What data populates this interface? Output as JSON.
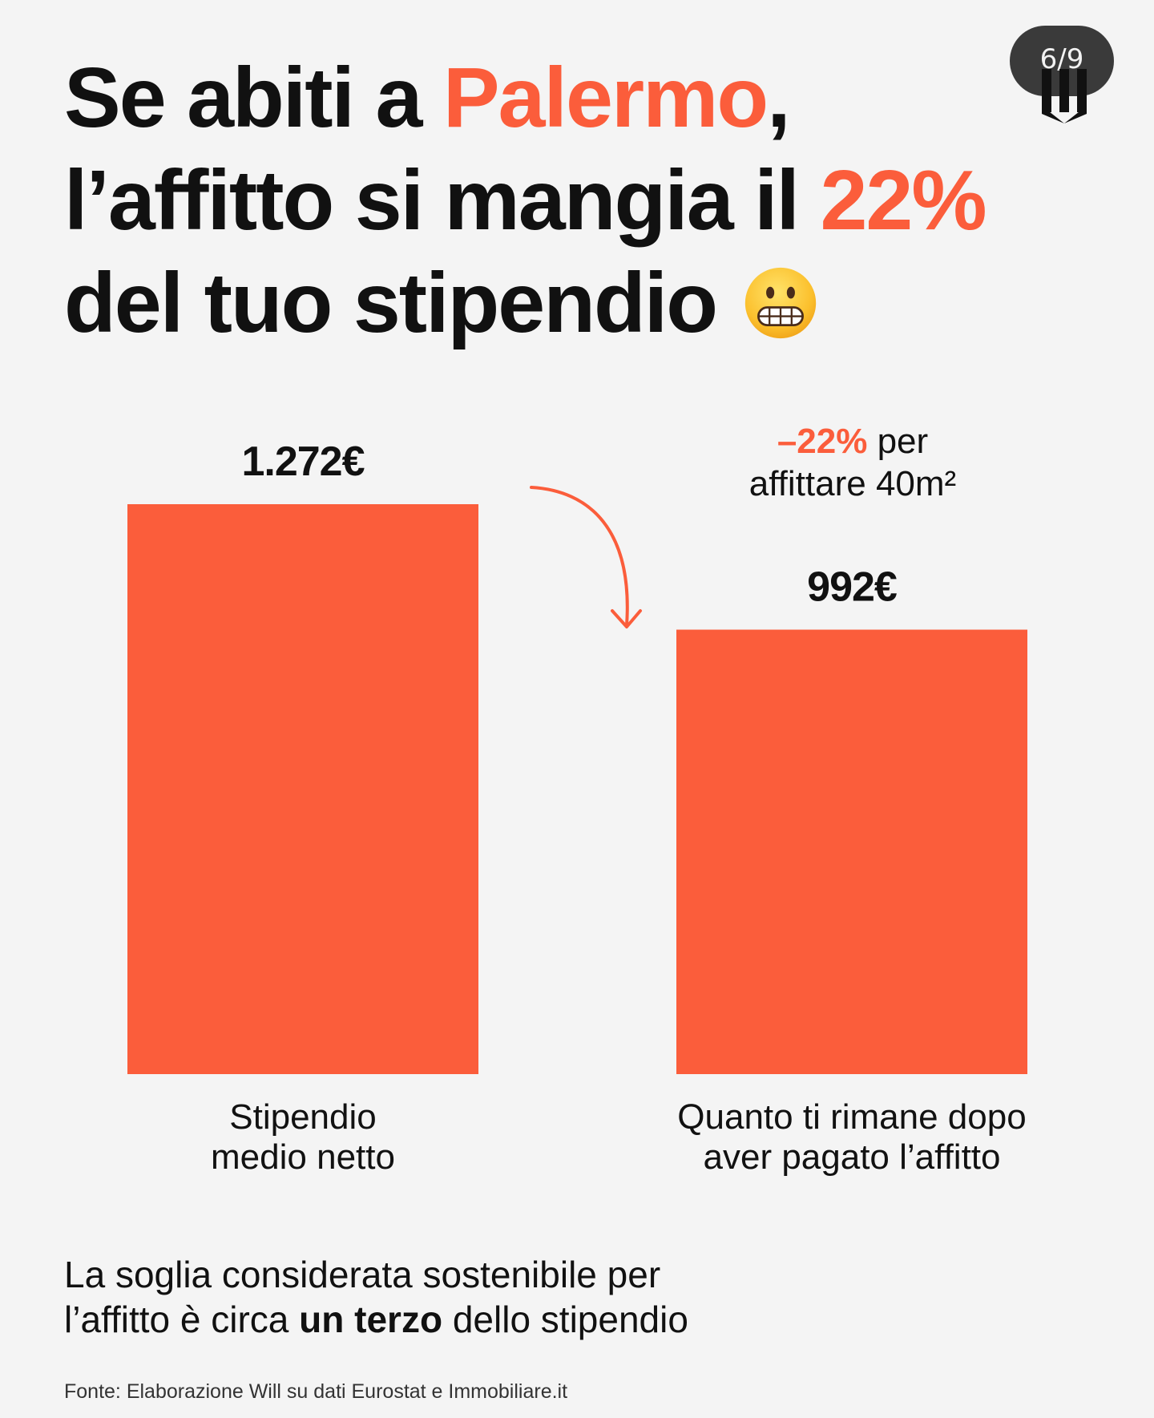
{
  "headline": {
    "line1_pre": "Se abiti a ",
    "line1_city": "Palermo",
    "line1_post": ",",
    "line2_pre": "l’affitto si mangia il ",
    "line2_pct": "22%",
    "line3": "del tuo stipendio",
    "emoji": "grimacing-face-icon"
  },
  "pagination": {
    "counter": "6/9"
  },
  "brand": {
    "logo": "will-logo-icon"
  },
  "colors": {
    "accent": "#fb5d3b",
    "text": "#111111",
    "background": "#f4f4f4"
  },
  "chart_data": {
    "type": "bar",
    "categories": [
      "Stipendio medio netto",
      "Quanto ti rimane dopo aver pagato l’affitto"
    ],
    "category_lines": [
      [
        "Stipendio",
        "medio netto"
      ],
      [
        "Quanto ti rimane dopo",
        "aver pagato l’affitto"
      ]
    ],
    "values": [
      1272,
      992
    ],
    "value_labels": [
      "1.272€",
      "992€"
    ],
    "ylim": [
      0,
      1272
    ],
    "grid": false,
    "annotation": {
      "accent_text": "–22%",
      "line1_rest": " per",
      "line2": "affittare 40m²",
      "arrow": "curved-arrow-down-icon"
    }
  },
  "footer": {
    "note_pre": "La soglia considerata sostenibile per",
    "note_line2_pre": "l’affitto è circa ",
    "note_bold": "un terzo",
    "note_post": " dello stipendio",
    "source": "Fonte: Elaborazione Will su dati Eurostat e Immobiliare.it"
  }
}
